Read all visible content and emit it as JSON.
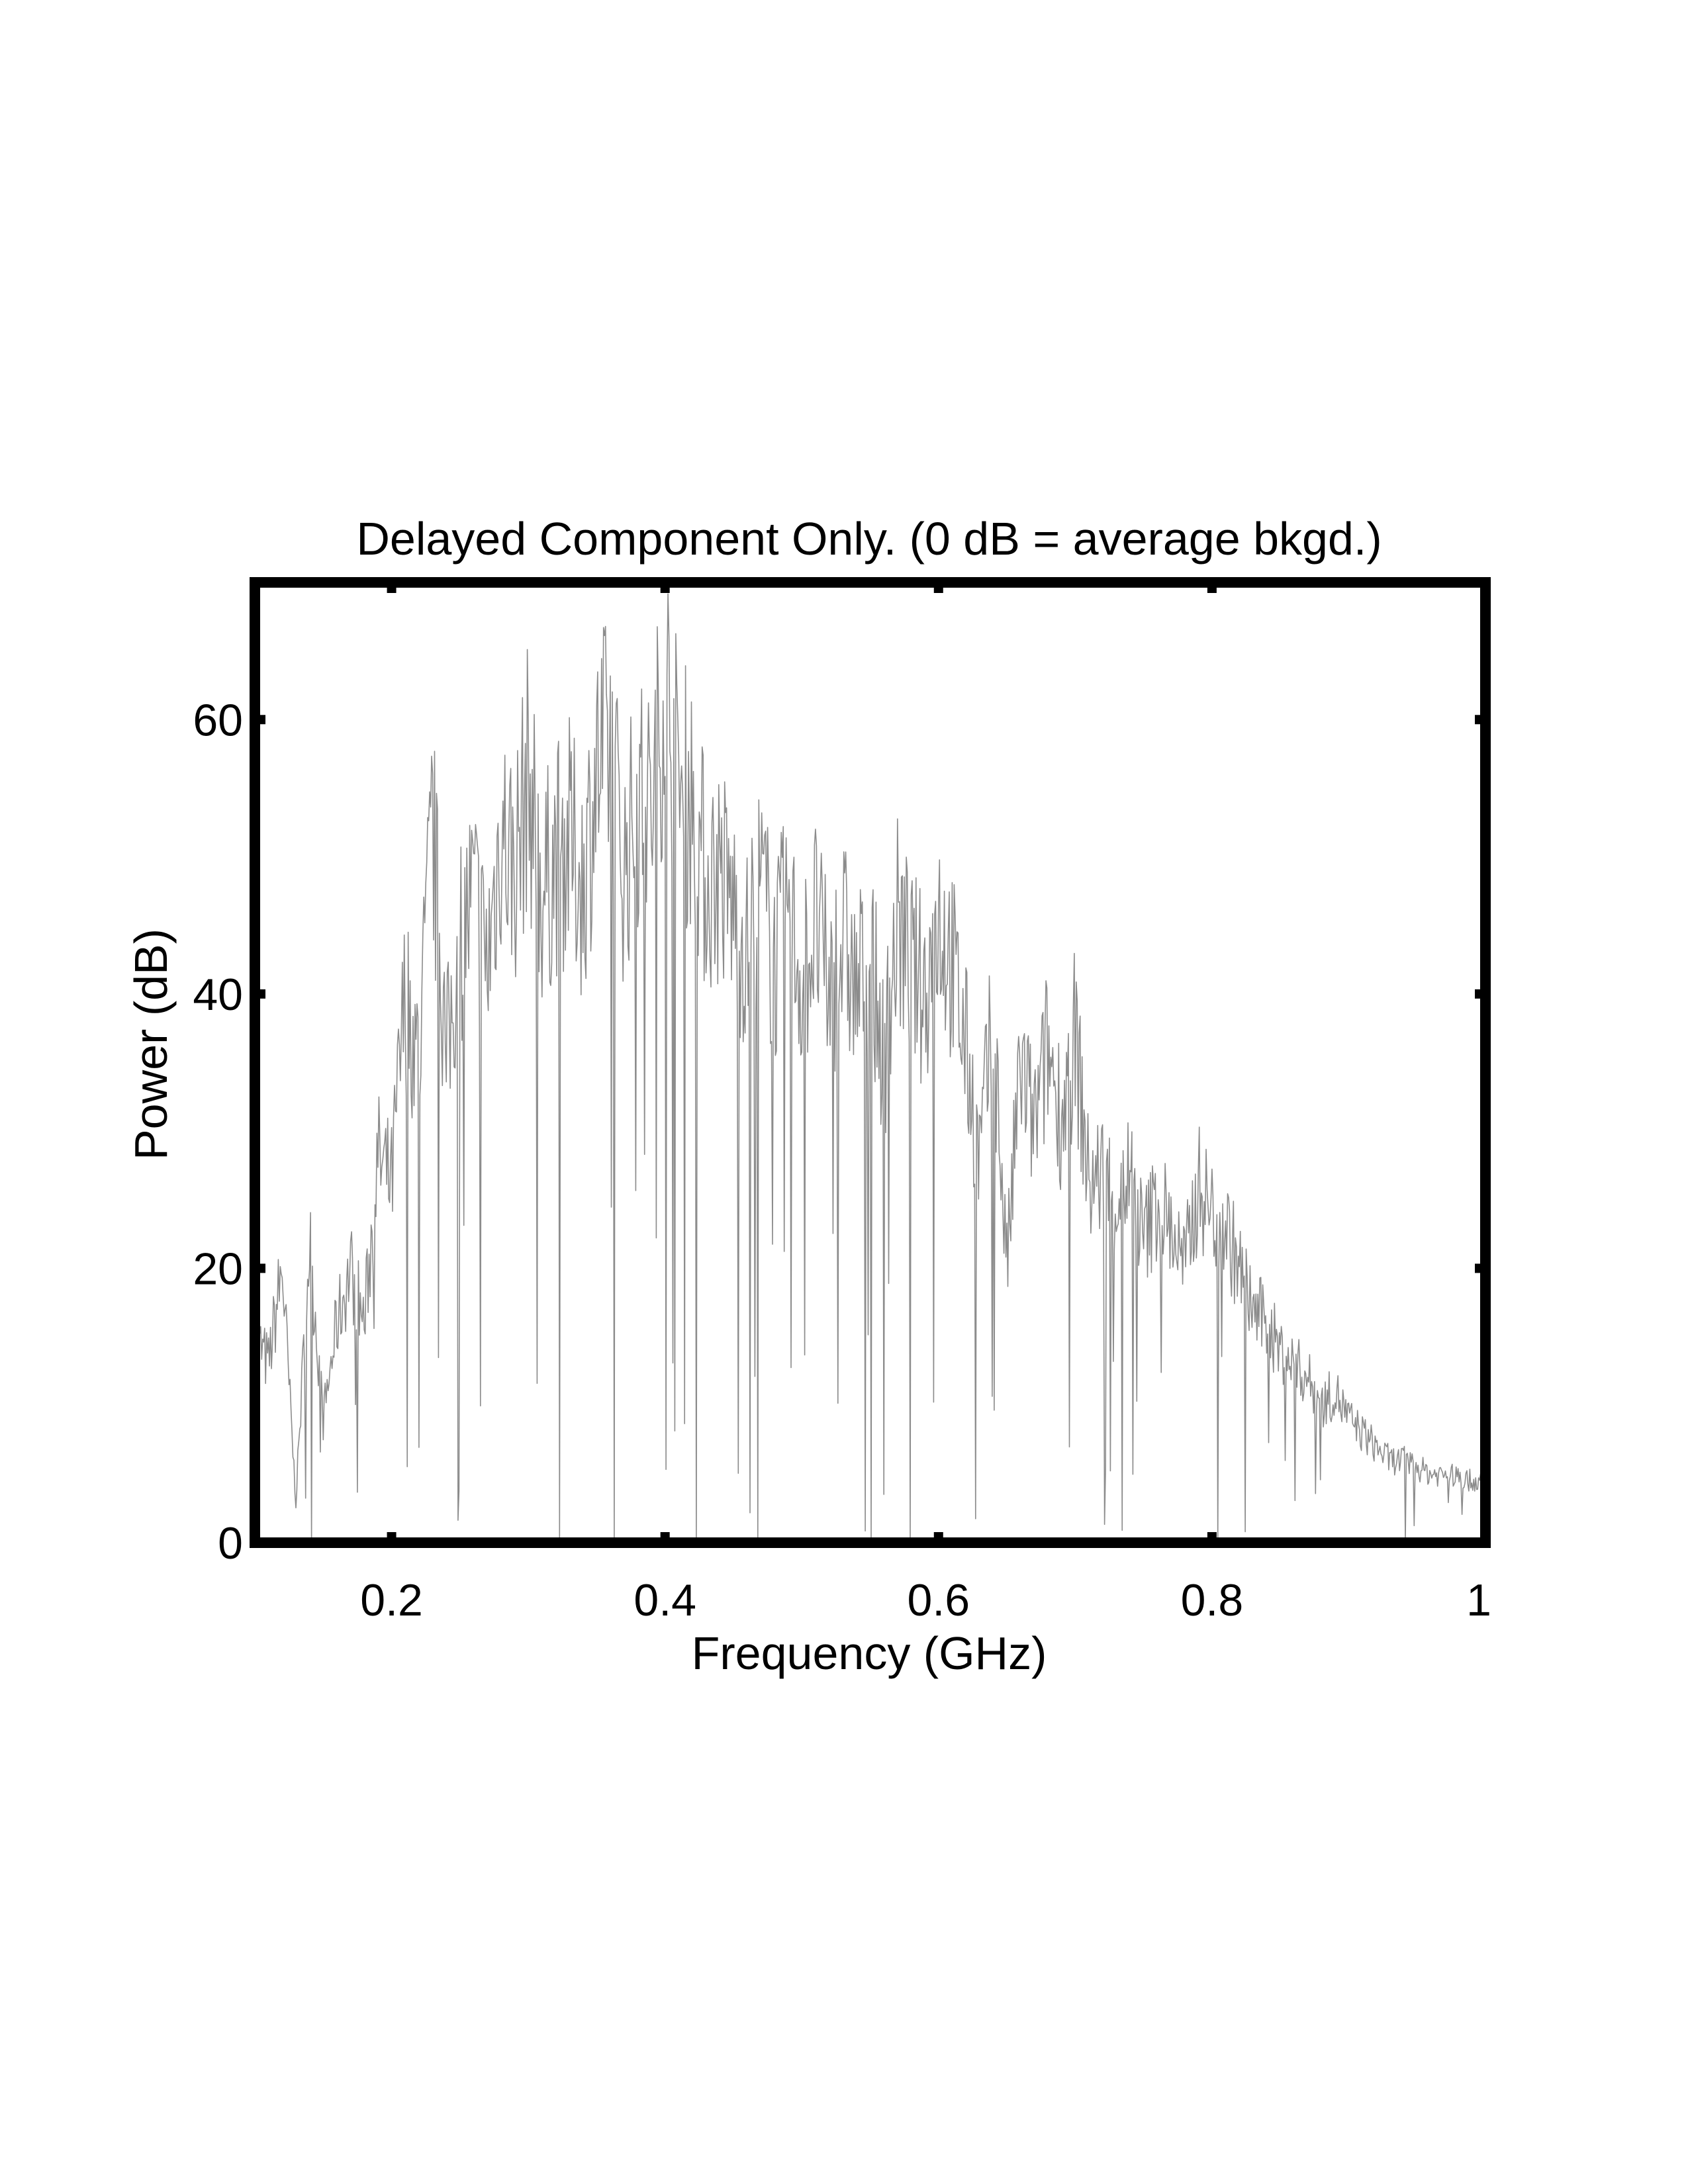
{
  "chart_data": {
    "type": "line",
    "title": "Delayed Component Only. (0 dB = average bkgd.)",
    "xlabel": "Frequency (GHz)",
    "ylabel": "Power (dB)",
    "xlim": [
      0.1,
      1.0
    ],
    "ylim": [
      0,
      70
    ],
    "x_ticks": [
      0.2,
      0.4,
      0.6,
      0.8,
      1.0
    ],
    "x_tick_labels": [
      "0.2",
      "0.4",
      "0.6",
      "0.8",
      "1"
    ],
    "y_ticks": [
      0,
      20,
      40,
      60
    ],
    "y_tick_labels": [
      "0",
      "20",
      "40",
      "60"
    ],
    "grid": false,
    "legend": "none",
    "line_color": "#8c8c8c",
    "frame_color": "#000000",
    "series": [
      {
        "x": [
          0.1,
          0.11,
          0.12,
          0.13,
          0.14,
          0.15,
          0.16,
          0.17,
          0.18,
          0.19,
          0.2,
          0.21,
          0.22,
          0.23,
          0.24,
          0.25,
          0.26,
          0.27,
          0.28,
          0.29,
          0.3,
          0.31,
          0.32,
          0.33,
          0.34,
          0.35,
          0.36,
          0.37,
          0.38,
          0.39,
          0.4,
          0.41,
          0.42,
          0.43,
          0.44,
          0.45,
          0.46,
          0.47,
          0.48,
          0.49,
          0.5,
          0.51,
          0.52,
          0.53,
          0.54,
          0.55,
          0.56,
          0.57,
          0.58,
          0.59,
          0.6,
          0.61,
          0.62,
          0.63,
          0.64,
          0.65,
          0.66,
          0.67,
          0.68,
          0.69,
          0.7,
          0.71,
          0.72,
          0.73,
          0.74,
          0.75,
          0.76,
          0.77,
          0.78,
          0.79,
          0.8,
          0.81,
          0.82,
          0.83,
          0.84,
          0.85,
          0.86,
          0.87,
          0.88,
          0.89,
          0.9,
          0.91,
          0.92,
          0.93,
          0.94,
          0.95,
          0.96,
          0.97,
          0.98,
          0.99,
          1.0
        ],
        "values": [
          15,
          13,
          20,
          3,
          22,
          9,
          16,
          20,
          16,
          28,
          26,
          40,
          35,
          52,
          35,
          44,
          47,
          42,
          52,
          49,
          56,
          47,
          50,
          51,
          48,
          56,
          58,
          49,
          54,
          53,
          63,
          55,
          54,
          48,
          49,
          46,
          43,
          48,
          42,
          46,
          41,
          45,
          40,
          44,
          40,
          43,
          35,
          45,
          42,
          40,
          46,
          42,
          36,
          28,
          38,
          20,
          35,
          30,
          36,
          31,
          37,
          26,
          27,
          25,
          27,
          22,
          25,
          23,
          20,
          26,
          24,
          23,
          20,
          17,
          16,
          14,
          13,
          12,
          10,
          11,
          9,
          8,
          7,
          6,
          6,
          5.5,
          5,
          5,
          4.8,
          4.5,
          4.5
        ]
      }
    ]
  }
}
